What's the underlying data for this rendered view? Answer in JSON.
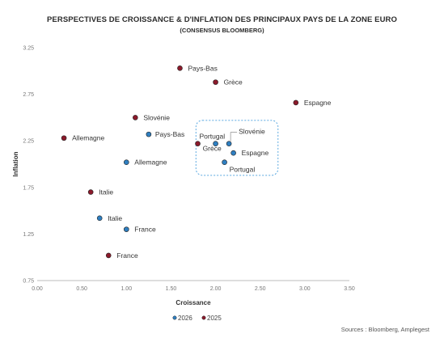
{
  "chart_data": {
    "type": "scatter",
    "title": "PERSPECTIVES DE CROISSANCE & D'INFLATION DES PRINCIPAUX PAYS DE LA ZONE EURO",
    "subtitle": "(CONSENSUS BLOOMBERG)",
    "xlabel": "Croissance",
    "ylabel": "Inflation",
    "xlim": [
      0,
      3.5
    ],
    "ylim": [
      0.75,
      3.25
    ],
    "xticks": [
      "0.00",
      "0.50",
      "1.00",
      "1.50",
      "2.00",
      "2.50",
      "3.00",
      "3.50"
    ],
    "yticks": [
      "0.75",
      "1.25",
      "1.75",
      "2.25",
      "2.75",
      "3.25"
    ],
    "grid": false,
    "legend_position": "bottom",
    "series": [
      {
        "name": "2026",
        "color": "#2f7fc1",
        "points": [
          {
            "label": "Pays-Bas",
            "x": 1.25,
            "y": 2.32
          },
          {
            "label": "Allemagne",
            "x": 1.0,
            "y": 2.02
          },
          {
            "label": "Italie",
            "x": 0.7,
            "y": 1.42
          },
          {
            "label": "France",
            "x": 1.0,
            "y": 1.3
          },
          {
            "label": "Slovénie",
            "x": 2.15,
            "y": 2.22
          },
          {
            "label": "Portugal",
            "x": 2.1,
            "y": 2.02
          },
          {
            "label": "Espagne",
            "x": 2.2,
            "y": 2.12
          },
          {
            "label": "Grèce",
            "x": 2.0,
            "y": 2.22
          }
        ]
      },
      {
        "name": "2025",
        "color": "#8b1a2b",
        "points": [
          {
            "label": "Pays-Bas",
            "x": 1.6,
            "y": 3.03
          },
          {
            "label": "Grèce",
            "x": 2.0,
            "y": 2.88
          },
          {
            "label": "Espagne",
            "x": 2.9,
            "y": 2.66
          },
          {
            "label": "Slovénie",
            "x": 1.1,
            "y": 2.5
          },
          {
            "label": "Allemagne",
            "x": 0.3,
            "y": 2.28
          },
          {
            "label": "Portugal",
            "x": 1.8,
            "y": 2.22
          },
          {
            "label": "Italie",
            "x": 0.6,
            "y": 1.7
          },
          {
            "label": "France",
            "x": 0.8,
            "y": 1.02
          }
        ]
      }
    ],
    "highlight_box_color": "#5aa8e0"
  },
  "source_text": "Sources : Bloomberg, Amplegest"
}
